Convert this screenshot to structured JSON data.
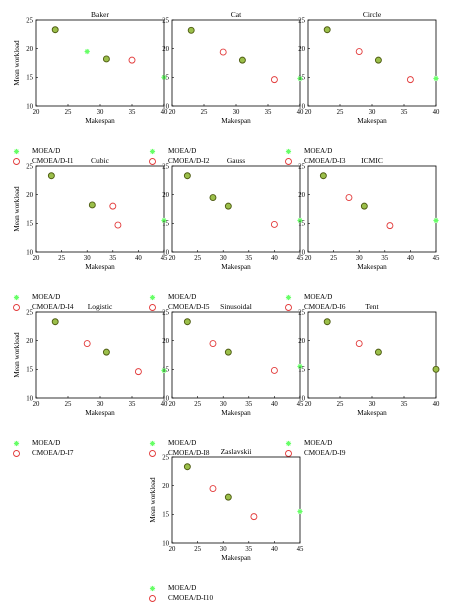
{
  "colors": {
    "moead": "#66ff66",
    "cmoead": "#e23a3a",
    "overlap_fill": "#9bbf4a",
    "overlap_edge": "#4c5a10"
  },
  "chart_data": [
    {
      "type": "scatter",
      "title": "Baker",
      "xlabel": "Makespan",
      "ylabel": "Mean workload",
      "xlim": [
        20,
        40
      ],
      "ylim": [
        10,
        25
      ],
      "xticks": [
        "20",
        "25",
        "30",
        "35",
        "40"
      ],
      "yticks": [
        "10",
        "15",
        "20",
        "25"
      ],
      "overlap": [
        [
          23,
          23.3
        ],
        [
          31,
          18.2
        ]
      ],
      "series": [
        {
          "name": "MOEA/D",
          "marker": "asterisk",
          "points": [
            [
              28,
              19.5
            ],
            [
              40,
              15
            ]
          ]
        },
        {
          "name": "CMOEA/D-I1",
          "marker": "circle",
          "points": [
            [
              35,
              18
            ]
          ]
        }
      ]
    },
    {
      "type": "scatter",
      "title": "Cat",
      "xlabel": "Makespan",
      "ylabel": "",
      "xlim": [
        20,
        40
      ],
      "ylim": [
        10,
        25
      ],
      "xticks": [
        "20",
        "25",
        "30",
        "35",
        "40"
      ],
      "yticks": [
        "10",
        "15",
        "20",
        "25"
      ],
      "overlap": [
        [
          23,
          23.2
        ],
        [
          31,
          18
        ]
      ],
      "series": [
        {
          "name": "MOEA/D",
          "marker": "asterisk",
          "points": [
            [
              40,
              14.8
            ]
          ]
        },
        {
          "name": "CMOEA/D-I2",
          "marker": "circle",
          "points": [
            [
              28,
              19.4
            ],
            [
              36,
              14.6
            ]
          ]
        }
      ]
    },
    {
      "type": "scatter",
      "title": "Circle",
      "xlabel": "Makespan",
      "ylabel": "",
      "xlim": [
        20,
        40
      ],
      "ylim": [
        10,
        25
      ],
      "xticks": [
        "20",
        "25",
        "30",
        "35",
        "40"
      ],
      "yticks": [
        "10",
        "15",
        "20",
        "25"
      ],
      "overlap": [
        [
          23,
          23.3
        ],
        [
          31,
          18
        ]
      ],
      "series": [
        {
          "name": "MOEA/D",
          "marker": "asterisk",
          "points": [
            [
              40,
              14.8
            ]
          ]
        },
        {
          "name": "CMOEA/D-I3",
          "marker": "circle",
          "points": [
            [
              28,
              19.5
            ],
            [
              36,
              14.6
            ]
          ]
        }
      ]
    },
    {
      "type": "scatter",
      "title": "Cubic",
      "xlabel": "Makespan",
      "ylabel": "Mean workload",
      "xlim": [
        20,
        45
      ],
      "ylim": [
        10,
        25
      ],
      "xticks": [
        "20",
        "25",
        "30",
        "35",
        "40",
        "45"
      ],
      "yticks": [
        "10",
        "15",
        "20",
        "25"
      ],
      "overlap": [
        [
          23,
          23.3
        ],
        [
          31,
          18.2
        ]
      ],
      "series": [
        {
          "name": "MOEA/D",
          "marker": "asterisk",
          "points": [
            [
              45,
              15.5
            ]
          ]
        },
        {
          "name": "CMOEA/D-I4",
          "marker": "circle",
          "points": [
            [
              35,
              18
            ],
            [
              36,
              14.7
            ]
          ]
        }
      ]
    },
    {
      "type": "scatter",
      "title": "Gauss",
      "xlabel": "Makespan",
      "ylabel": "",
      "xlim": [
        20,
        45
      ],
      "ylim": [
        10,
        25
      ],
      "xticks": [
        "20",
        "25",
        "30",
        "35",
        "40",
        "45"
      ],
      "yticks": [
        "10",
        "15",
        "20",
        "25"
      ],
      "overlap": [
        [
          23,
          23.3
        ],
        [
          28,
          19.5
        ],
        [
          31,
          18
        ]
      ],
      "series": [
        {
          "name": "MOEA/D",
          "marker": "asterisk",
          "points": [
            [
              45,
              15.5
            ]
          ]
        },
        {
          "name": "CMOEA/D-I5",
          "marker": "circle",
          "points": [
            [
              40,
              14.8
            ]
          ]
        }
      ]
    },
    {
      "type": "scatter",
      "title": "ICMIC",
      "xlabel": "Makespan",
      "ylabel": "",
      "xlim": [
        20,
        45
      ],
      "ylim": [
        10,
        25
      ],
      "xticks": [
        "20",
        "25",
        "30",
        "35",
        "40",
        "45"
      ],
      "yticks": [
        "10",
        "15",
        "20",
        "25"
      ],
      "overlap": [
        [
          23,
          23.3
        ],
        [
          31,
          18
        ]
      ],
      "series": [
        {
          "name": "MOEA/D",
          "marker": "asterisk",
          "points": [
            [
              45,
              15.5
            ]
          ]
        },
        {
          "name": "CMOEA/D-I6",
          "marker": "circle",
          "points": [
            [
              28,
              19.5
            ],
            [
              36,
              14.6
            ]
          ]
        }
      ]
    },
    {
      "type": "scatter",
      "title": "Logistic",
      "xlabel": "Makespan",
      "ylabel": "Mean workload",
      "xlim": [
        20,
        40
      ],
      "ylim": [
        10,
        25
      ],
      "xticks": [
        "20",
        "25",
        "30",
        "35",
        "40"
      ],
      "yticks": [
        "10",
        "15",
        "20",
        "25"
      ],
      "overlap": [
        [
          23,
          23.3
        ],
        [
          31,
          18
        ]
      ],
      "series": [
        {
          "name": "MOEA/D",
          "marker": "asterisk",
          "points": [
            [
              40,
              14.8
            ]
          ]
        },
        {
          "name": "CMOEA/D-I7",
          "marker": "circle",
          "points": [
            [
              28,
              19.5
            ],
            [
              36,
              14.6
            ]
          ]
        }
      ]
    },
    {
      "type": "scatter",
      "title": "Sinusoidal",
      "xlabel": "Makespan",
      "ylabel": "",
      "xlim": [
        20,
        45
      ],
      "ylim": [
        10,
        25
      ],
      "xticks": [
        "20",
        "25",
        "30",
        "35",
        "40",
        "45"
      ],
      "yticks": [
        "10",
        "15",
        "20",
        "25"
      ],
      "overlap": [
        [
          23,
          23.3
        ],
        [
          31,
          18
        ]
      ],
      "series": [
        {
          "name": "MOEA/D",
          "marker": "asterisk",
          "points": [
            [
              45,
              15.5
            ]
          ]
        },
        {
          "name": "CMOEA/D-I8",
          "marker": "circle",
          "points": [
            [
              28,
              19.5
            ],
            [
              40,
              14.8
            ]
          ]
        }
      ]
    },
    {
      "type": "scatter",
      "title": "Tent",
      "xlabel": "Makespan",
      "ylabel": "",
      "xlim": [
        20,
        40
      ],
      "ylim": [
        10,
        25
      ],
      "xticks": [
        "20",
        "25",
        "30",
        "35",
        "40"
      ],
      "yticks": [
        "10",
        "15",
        "20",
        "25"
      ],
      "overlap": [
        [
          23,
          23.3
        ],
        [
          31,
          18
        ],
        [
          40,
          15
        ]
      ],
      "series": [
        {
          "name": "MOEA/D",
          "marker": "asterisk",
          "points": []
        },
        {
          "name": "CMOEA/D-I9",
          "marker": "circle",
          "points": [
            [
              28,
              19.5
            ]
          ]
        }
      ]
    },
    {
      "type": "scatter",
      "title": "Zaslavskii",
      "xlabel": "Makespan",
      "ylabel": "Mean workload",
      "xlim": [
        20,
        45
      ],
      "ylim": [
        10,
        25
      ],
      "xticks": [
        "20",
        "25",
        "30",
        "35",
        "40",
        "45"
      ],
      "yticks": [
        "10",
        "15",
        "20",
        "25"
      ],
      "overlap": [
        [
          23,
          23.3
        ],
        [
          31,
          18
        ]
      ],
      "series": [
        {
          "name": "MOEA/D",
          "marker": "asterisk",
          "points": [
            [
              45,
              15.5
            ]
          ]
        },
        {
          "name": "CMOEA/D-I10",
          "marker": "circle",
          "points": [
            [
              28,
              19.5
            ],
            [
              36,
              14.6
            ]
          ]
        }
      ]
    }
  ]
}
